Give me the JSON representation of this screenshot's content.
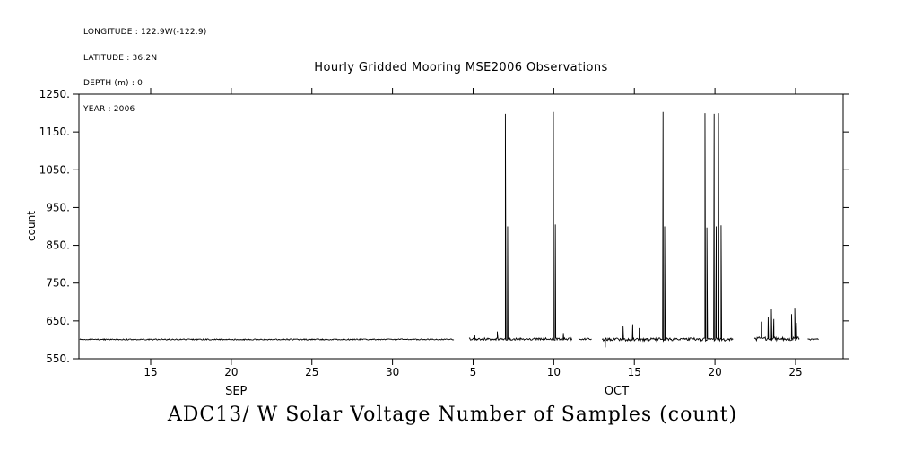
{
  "header": {
    "longitude": "LONGITUDE : 122.9W(-122.9)",
    "latitude": "LATITUDE : 36.2N",
    "depth": "DEPTH (m) : 0",
    "year": "YEAR : 2006"
  },
  "chart_data": {
    "type": "line",
    "title": "Hourly Gridded Mooring MSE2006 Observations",
    "bottom_title": "ADC13/ W Solar Voltage Number of Samples (count)",
    "ylabel": "count",
    "ylim": [
      550,
      1250
    ],
    "yticks": [
      {
        "value": 550,
        "label": "550."
      },
      {
        "value": 650,
        "label": "650."
      },
      {
        "value": 750,
        "label": "750."
      },
      {
        "value": 850,
        "label": "850."
      },
      {
        "value": 950,
        "label": "950."
      },
      {
        "value": 1050,
        "label": "1050."
      },
      {
        "value": 1150,
        "label": "1150."
      },
      {
        "value": 1250,
        "label": "1250."
      }
    ],
    "day_unit": "days since Sep 1 2006 (Oct d = 30 + d)",
    "x_domain_days": [
      10.55,
      57.95
    ],
    "xticks": [
      {
        "day": 15,
        "label": "15"
      },
      {
        "day": 20,
        "label": "20"
      },
      {
        "day": 25,
        "label": "25"
      },
      {
        "day": 30,
        "label": "30"
      },
      {
        "day": 35,
        "label": "5"
      },
      {
        "day": 40,
        "label": "10"
      },
      {
        "day": 45,
        "label": "15"
      },
      {
        "day": 50,
        "label": "20"
      },
      {
        "day": 55,
        "label": "25"
      }
    ],
    "month_labels": [
      {
        "label": "SEP",
        "day": 20.3
      },
      {
        "label": "OCT",
        "day": 43.9
      }
    ],
    "grid": false,
    "legend": "none",
    "line_color": "#000000",
    "background": "#ffffff",
    "baseline_count": 600,
    "segments": [
      {
        "start": 10.6,
        "end": 33.85,
        "base": 601,
        "noise": 1.6
      },
      {
        "start": 34.75,
        "end": 41.15,
        "base": 602,
        "noise": 3.2
      },
      {
        "start": 41.55,
        "end": 42.35,
        "base": 602,
        "noise": 2.4
      },
      {
        "start": 43.0,
        "end": 51.15,
        "base": 601,
        "noise": 4.2
      },
      {
        "start": 52.45,
        "end": 55.25,
        "base": 603,
        "noise": 5.0
      },
      {
        "start": 55.75,
        "end": 56.45,
        "base": 601,
        "noise": 1.8
      }
    ],
    "spikes": [
      {
        "day": 35.1,
        "peak": 614
      },
      {
        "day": 36.5,
        "peak": 622
      },
      {
        "day": 37.0,
        "peak": 1198
      },
      {
        "day": 37.14,
        "peak": 900
      },
      {
        "day": 39.98,
        "peak": 1203
      },
      {
        "day": 40.1,
        "peak": 905
      },
      {
        "day": 40.6,
        "peak": 618
      },
      {
        "day": 43.2,
        "peak": 580
      },
      {
        "day": 44.3,
        "peak": 636
      },
      {
        "day": 44.9,
        "peak": 641
      },
      {
        "day": 45.3,
        "peak": 631
      },
      {
        "day": 46.78,
        "peak": 1203
      },
      {
        "day": 46.88,
        "peak": 900
      },
      {
        "day": 49.38,
        "peak": 1200
      },
      {
        "day": 49.5,
        "peak": 897
      },
      {
        "day": 49.95,
        "peak": 1198
      },
      {
        "day": 50.08,
        "peak": 900
      },
      {
        "day": 50.22,
        "peak": 1200
      },
      {
        "day": 50.38,
        "peak": 903
      },
      {
        "day": 52.9,
        "peak": 648
      },
      {
        "day": 53.3,
        "peak": 660
      },
      {
        "day": 53.5,
        "peak": 681
      },
      {
        "day": 53.65,
        "peak": 655
      },
      {
        "day": 54.75,
        "peak": 668
      },
      {
        "day": 54.95,
        "peak": 685
      },
      {
        "day": 55.05,
        "peak": 645
      }
    ]
  }
}
